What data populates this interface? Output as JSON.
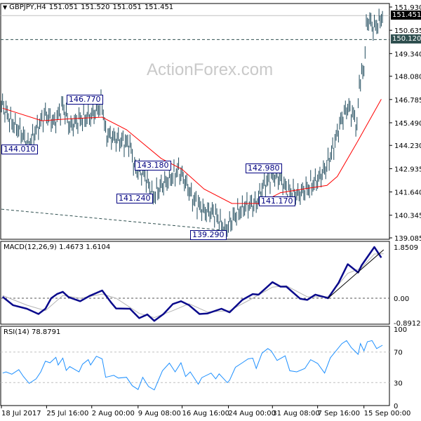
{
  "header": {
    "symbol_timeframe": "GBPJPY,H4",
    "open": "151.051",
    "high": "151.520",
    "low": "151.051",
    "close": "151.451"
  },
  "watermark": "ActionForex.com",
  "current_price_label": "151.451",
  "level_label": "150.120",
  "annotations": [
    {
      "text": "146.770",
      "bar": 87
    },
    {
      "text": "144.010",
      "bar": 23
    },
    {
      "text": "143.180",
      "bar": 144
    },
    {
      "text": "141.240",
      "bar": 131
    },
    {
      "text": "139.290",
      "bar": 191
    },
    {
      "text": "142.980",
      "bar": 243
    },
    {
      "text": "141.170",
      "bar": 253
    }
  ],
  "macd_label": "MACD(12,26,9) 1.4673 1.6104",
  "rsi_label": "RSI(14) 78.8791",
  "colors": {
    "bars": "#1f4a5c",
    "ma": "#ff0000",
    "macd": "#0a0a8c",
    "signal": "#b4b4b4",
    "rsi": "#1e90ff",
    "annotation": "#000080"
  },
  "chart_data": [
    {
      "type": "line",
      "title": "GBPJPY,H4",
      "panel": "price",
      "x_domain_bars": [
        0,
        335
      ],
      "ylim": [
        139.085,
        151.93
      ],
      "y_ticks": [
        "151.930",
        "150.635",
        "149.340",
        "148.080",
        "146.785",
        "145.490",
        "144.230",
        "142.935",
        "141.640",
        "140.345",
        "139.085"
      ],
      "x_ticks": [
        {
          "bar": 0,
          "label": "18 Jul 2017"
        },
        {
          "bar": 39,
          "label": "25 Jul 16:00"
        },
        {
          "bar": 78,
          "label": "2 Aug 00:00"
        },
        {
          "bar": 118,
          "label": "9 Aug 08:00"
        },
        {
          "bar": 156,
          "label": "16 Aug 16:00"
        },
        {
          "bar": 196,
          "label": "24 Aug 00:00"
        },
        {
          "bar": 234,
          "label": "31 Aug 08:00"
        },
        {
          "bar": 273,
          "label": "7 Sep 16:00"
        },
        {
          "bar": 313,
          "label": "15 Sep 00:00"
        }
      ],
      "close_series": [
        [
          1,
          146.5
        ],
        [
          8,
          145.6
        ],
        [
          17,
          145.0
        ],
        [
          23,
          144.2
        ],
        [
          29,
          145.0
        ],
        [
          38,
          146.0
        ],
        [
          46,
          145.5
        ],
        [
          53,
          146.5
        ],
        [
          59,
          145.3
        ],
        [
          68,
          145.7
        ],
        [
          78,
          145.9
        ],
        [
          87,
          146.6
        ],
        [
          90,
          144.9
        ],
        [
          99,
          144.6
        ],
        [
          111,
          144.3
        ],
        [
          115,
          143.0
        ],
        [
          123,
          142.7
        ],
        [
          131,
          141.4
        ],
        [
          138,
          142.0
        ],
        [
          147,
          142.5
        ],
        [
          153,
          142.9
        ],
        [
          159,
          142.2
        ],
        [
          165,
          141.3
        ],
        [
          175,
          140.6
        ],
        [
          184,
          140.5
        ],
        [
          193,
          139.5
        ],
        [
          202,
          140.4
        ],
        [
          211,
          140.9
        ],
        [
          220,
          141.0
        ],
        [
          226,
          142.0
        ],
        [
          235,
          142.6
        ],
        [
          241,
          142.4
        ],
        [
          247,
          141.7
        ],
        [
          256,
          141.5
        ],
        [
          265,
          141.9
        ],
        [
          274,
          142.4
        ],
        [
          280,
          143.0
        ],
        [
          286,
          144.0
        ],
        [
          293,
          145.6
        ],
        [
          299,
          146.4
        ],
        [
          305,
          145.8
        ],
        [
          307,
          145.2
        ],
        [
          309,
          147.8
        ],
        [
          313,
          148.5
        ],
        [
          315,
          150.8
        ],
        [
          317,
          151.3
        ],
        [
          321,
          150.8
        ],
        [
          325,
          151.0
        ],
        [
          329,
          151.451
        ]
      ],
      "moving_average": [
        [
          1,
          146.3
        ],
        [
          35,
          145.6
        ],
        [
          56,
          145.7
        ],
        [
          87,
          145.8
        ],
        [
          108,
          145.1
        ],
        [
          138,
          143.5
        ],
        [
          156,
          142.9
        ],
        [
          175,
          141.8
        ],
        [
          199,
          141.0
        ],
        [
          223,
          141.0
        ],
        [
          241,
          141.6
        ],
        [
          265,
          141.85
        ],
        [
          281,
          142.0
        ],
        [
          290,
          142.5
        ],
        [
          308,
          144.5
        ],
        [
          328,
          146.8
        ]
      ],
      "trendline": [
        [
          0,
          140.68
        ],
        [
          193,
          139.5
        ]
      ],
      "current_price": 151.451,
      "level": 150.12
    },
    {
      "type": "line",
      "panel": "macd",
      "title": "MACD(12,26,9)",
      "ylim": [
        -0.8912,
        1.8509
      ],
      "y_ticks": [
        "1.8509",
        "0.00",
        "-0.8912"
      ],
      "macd": [
        [
          1,
          0.05
        ],
        [
          10,
          -0.25
        ],
        [
          22,
          -0.38
        ],
        [
          32,
          -0.57
        ],
        [
          38,
          -0.38
        ],
        [
          43,
          0
        ],
        [
          48,
          0.15
        ],
        [
          53,
          0.23
        ],
        [
          58,
          0.04
        ],
        [
          68,
          -0.11
        ],
        [
          76,
          0.08
        ],
        [
          87,
          0.28
        ],
        [
          95,
          -0.17
        ],
        [
          99,
          -0.37
        ],
        [
          111,
          -0.38
        ],
        [
          119,
          -0.72
        ],
        [
          126,
          -0.59
        ],
        [
          132,
          -0.82
        ],
        [
          140,
          -0.57
        ],
        [
          148,
          -0.21
        ],
        [
          155,
          -0.11
        ],
        [
          162,
          -0.25
        ],
        [
          171,
          -0.57
        ],
        [
          178,
          -0.55
        ],
        [
          190,
          -0.38
        ],
        [
          197,
          -0.51
        ],
        [
          208,
          -0.06
        ],
        [
          217,
          0.15
        ],
        [
          222,
          0.13
        ],
        [
          234,
          0.58
        ],
        [
          241,
          0.42
        ],
        [
          246,
          0.42
        ],
        [
          258,
          -0.02
        ],
        [
          264,
          -0.06
        ],
        [
          271,
          0.13
        ],
        [
          279,
          0.04
        ],
        [
          282,
          0
        ],
        [
          291,
          0.55
        ],
        [
          299,
          1.23
        ],
        [
          308,
          0.93
        ],
        [
          311,
          1.19
        ],
        [
          322,
          1.85
        ],
        [
          328,
          1.4673
        ]
      ],
      "signal": [
        [
          1,
          0.1
        ],
        [
          22,
          -0.25
        ],
        [
          38,
          -0.45
        ],
        [
          53,
          0.1
        ],
        [
          68,
          0.0
        ],
        [
          87,
          0.15
        ],
        [
          99,
          0.0
        ],
        [
          119,
          -0.55
        ],
        [
          132,
          -0.7
        ],
        [
          148,
          -0.45
        ],
        [
          162,
          -0.2
        ],
        [
          178,
          -0.5
        ],
        [
          197,
          -0.45
        ],
        [
          217,
          0.0
        ],
        [
          234,
          0.4
        ],
        [
          246,
          0.45
        ],
        [
          264,
          0.05
        ],
        [
          282,
          0.05
        ],
        [
          299,
          0.9
        ],
        [
          311,
          1.1
        ],
        [
          322,
          1.6
        ],
        [
          330,
          1.6104
        ]
      ],
      "trendline": [
        [
          282,
          0
        ],
        [
          330,
          1.75
        ]
      ]
    },
    {
      "type": "line",
      "panel": "rsi",
      "title": "RSI(14)",
      "ylim": [
        0,
        100
      ],
      "y_ticks": [
        "100",
        "70",
        "30",
        "0"
      ],
      "levels": [
        70,
        30
      ],
      "rsi": [
        [
          1,
          42.5
        ],
        [
          4,
          44
        ],
        [
          9,
          41
        ],
        [
          15,
          47
        ],
        [
          19,
          38
        ],
        [
          24,
          29
        ],
        [
          30,
          35
        ],
        [
          34,
          44
        ],
        [
          38,
          58
        ],
        [
          42,
          56
        ],
        [
          47,
          63
        ],
        [
          49,
          53
        ],
        [
          53,
          62
        ],
        [
          56,
          46
        ],
        [
          59,
          51
        ],
        [
          67,
          44
        ],
        [
          70,
          54
        ],
        [
          75,
          60
        ],
        [
          77,
          53
        ],
        [
          82,
          64.5
        ],
        [
          87,
          61
        ],
        [
          90,
          37
        ],
        [
          97,
          39.5
        ],
        [
          101,
          36
        ],
        [
          108,
          37
        ],
        [
          113,
          26
        ],
        [
          118,
          21
        ],
        [
          122,
          37
        ],
        [
          127,
          25
        ],
        [
          132,
          20.5
        ],
        [
          139,
          45.5
        ],
        [
          145,
          55.5
        ],
        [
          150,
          44
        ],
        [
          155,
          56
        ],
        [
          159,
          38
        ],
        [
          163,
          44
        ],
        [
          170,
          28
        ],
        [
          173,
          36.5
        ],
        [
          181,
          42.5
        ],
        [
          185,
          35
        ],
        [
          188,
          41.5
        ],
        [
          195,
          30
        ],
        [
          197,
          33
        ],
        [
          202,
          50
        ],
        [
          208,
          56
        ],
        [
          213,
          61
        ],
        [
          217,
          62
        ],
        [
          220,
          48.5
        ],
        [
          225,
          68.5
        ],
        [
          230,
          74.5
        ],
        [
          233,
          71.5
        ],
        [
          238,
          59
        ],
        [
          245,
          65
        ],
        [
          249,
          45.5
        ],
        [
          255,
          44
        ],
        [
          262,
          48.5
        ],
        [
          267,
          60
        ],
        [
          273,
          55
        ],
        [
          279,
          42.5
        ],
        [
          284,
          62.5
        ],
        [
          294,
          81
        ],
        [
          298,
          85
        ],
        [
          302,
          76
        ],
        [
          308,
          67
        ],
        [
          310,
          81
        ],
        [
          313,
          71.5
        ],
        [
          316,
          83.5
        ],
        [
          320,
          85
        ],
        [
          324,
          74.5
        ],
        [
          329,
          78.8791
        ]
      ]
    }
  ]
}
